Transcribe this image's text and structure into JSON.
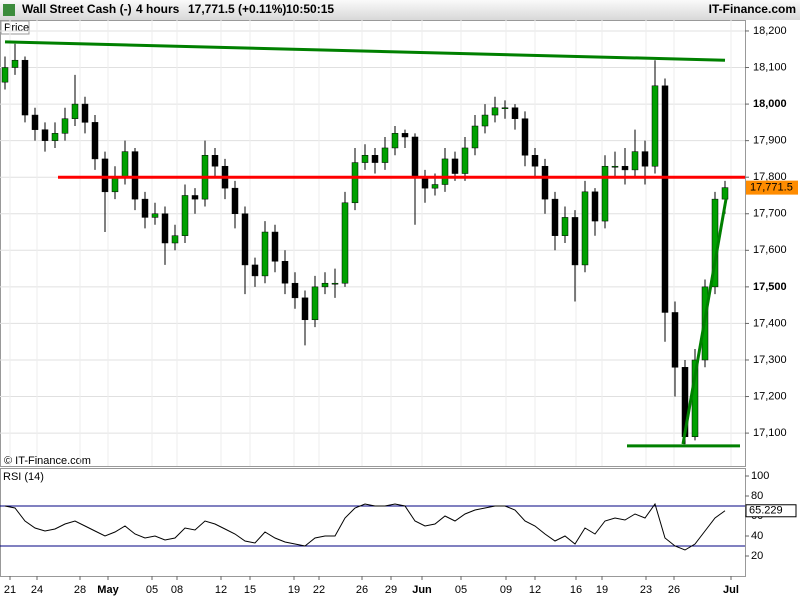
{
  "header": {
    "instrument": "Wall Street Cash (-)",
    "period": "4 hours",
    "quote": "17,771.5 (+0.11%)",
    "time": "10:50:15",
    "brand": "IT-Finance.com"
  },
  "chart_data": {
    "type": "candlestick",
    "pane_label": "Price",
    "copyright": "© IT-Finance.com",
    "candles": [
      [
        18060,
        18130,
        18040,
        18100
      ],
      [
        18100,
        18165,
        18080,
        18120
      ],
      [
        18120,
        18130,
        17950,
        17970
      ],
      [
        17970,
        17990,
        17900,
        17930
      ],
      [
        17930,
        17950,
        17870,
        17900
      ],
      [
        17900,
        17950,
        17880,
        17920
      ],
      [
        17920,
        17990,
        17900,
        17960
      ],
      [
        17960,
        18080,
        17940,
        18000
      ],
      [
        18000,
        18020,
        17920,
        17950
      ],
      [
        17950,
        17970,
        17820,
        17850
      ],
      [
        17850,
        17870,
        17650,
        17760
      ],
      [
        17760,
        17830,
        17740,
        17800
      ],
      [
        17800,
        17900,
        17780,
        17870
      ],
      [
        17870,
        17880,
        17710,
        17740
      ],
      [
        17740,
        17760,
        17660,
        17690
      ],
      [
        17690,
        17730,
        17670,
        17700
      ],
      [
        17700,
        17720,
        17560,
        17620
      ],
      [
        17620,
        17670,
        17600,
        17640
      ],
      [
        17640,
        17780,
        17620,
        17750
      ],
      [
        17750,
        17770,
        17700,
        17740
      ],
      [
        17740,
        17900,
        17720,
        17860
      ],
      [
        17860,
        17880,
        17800,
        17830
      ],
      [
        17830,
        17850,
        17740,
        17770
      ],
      [
        17770,
        17790,
        17660,
        17700
      ],
      [
        17700,
        17720,
        17480,
        17560
      ],
      [
        17560,
        17580,
        17500,
        17530
      ],
      [
        17530,
        17680,
        17510,
        17650
      ],
      [
        17650,
        17670,
        17540,
        17570
      ],
      [
        17570,
        17600,
        17480,
        17510
      ],
      [
        17510,
        17540,
        17440,
        17470
      ],
      [
        17470,
        17490,
        17340,
        17410
      ],
      [
        17410,
        17530,
        17390,
        17500
      ],
      [
        17500,
        17540,
        17480,
        17510
      ],
      [
        17510,
        17550,
        17470,
        17510
      ],
      [
        17510,
        17760,
        17500,
        17730
      ],
      [
        17730,
        17880,
        17710,
        17840
      ],
      [
        17840,
        17890,
        17820,
        17860
      ],
      [
        17860,
        17880,
        17810,
        17840
      ],
      [
        17840,
        17910,
        17820,
        17880
      ],
      [
        17880,
        17940,
        17860,
        17920
      ],
      [
        17920,
        17930,
        17880,
        17910
      ],
      [
        17910,
        17920,
        17670,
        17800
      ],
      [
        17800,
        17820,
        17730,
        17770
      ],
      [
        17770,
        17810,
        17750,
        17780
      ],
      [
        17780,
        17880,
        17760,
        17850
      ],
      [
        17850,
        17870,
        17790,
        17810
      ],
      [
        17810,
        17910,
        17790,
        17880
      ],
      [
        17880,
        17970,
        17860,
        17940
      ],
      [
        17940,
        18000,
        17920,
        17970
      ],
      [
        17970,
        18020,
        17950,
        17990
      ],
      [
        17990,
        18010,
        17960,
        17990
      ],
      [
        17990,
        18000,
        17930,
        17960
      ],
      [
        17960,
        17980,
        17830,
        17860
      ],
      [
        17860,
        17880,
        17800,
        17830
      ],
      [
        17830,
        17850,
        17700,
        17740
      ],
      [
        17740,
        17760,
        17600,
        17640
      ],
      [
        17640,
        17720,
        17620,
        17690
      ],
      [
        17690,
        17710,
        17460,
        17560
      ],
      [
        17560,
        17790,
        17540,
        17760
      ],
      [
        17760,
        17770,
        17640,
        17680
      ],
      [
        17680,
        17860,
        17660,
        17830
      ],
      [
        17830,
        17870,
        17800,
        17830
      ],
      [
        17830,
        17880,
        17780,
        17820
      ],
      [
        17820,
        17930,
        17800,
        17870
      ],
      [
        17870,
        17900,
        17780,
        17830
      ],
      [
        17830,
        18120,
        17810,
        18050
      ],
      [
        18050,
        18070,
        17350,
        17430
      ],
      [
        17430,
        17460,
        17200,
        17280
      ],
      [
        17280,
        17300,
        17070,
        17090
      ],
      [
        17090,
        17330,
        17080,
        17300
      ],
      [
        17300,
        17520,
        17280,
        17500
      ],
      [
        17500,
        17760,
        17480,
        17740
      ],
      [
        17740,
        17790,
        17700,
        17771.5
      ]
    ],
    "last_label": "17,771.5",
    "up_color": "#00a000",
    "down_color": "#000000",
    "last_color": "#ff8c00",
    "xlim": [
      -0.5,
      74
    ],
    "xticks": [
      {
        "value": 0.5,
        "label": "21"
      },
      {
        "value": 3.2,
        "label": "24"
      },
      {
        "value": 7.5,
        "label": "28"
      },
      {
        "value": 10.3,
        "label": "May"
      },
      {
        "value": 14.7,
        "label": "05"
      },
      {
        "value": 17.2,
        "label": "08"
      },
      {
        "value": 21.6,
        "label": "12"
      },
      {
        "value": 24.5,
        "label": "15"
      },
      {
        "value": 28.9,
        "label": "19"
      },
      {
        "value": 31.4,
        "label": "22"
      },
      {
        "value": 35.7,
        "label": "26"
      },
      {
        "value": 38.6,
        "label": "29"
      },
      {
        "value": 41.7,
        "label": "Jun"
      },
      {
        "value": 45.6,
        "label": "05"
      },
      {
        "value": 50.1,
        "label": "09"
      },
      {
        "value": 53,
        "label": "12"
      },
      {
        "value": 57.1,
        "label": "16"
      },
      {
        "value": 59.7,
        "label": "19"
      },
      {
        "value": 64.1,
        "label": "23"
      },
      {
        "value": 66.9,
        "label": "26"
      },
      {
        "value": 72.6,
        "label": "Jul"
      }
    ],
    "ylim": [
      17010,
      18230
    ],
    "yticks": [
      {
        "value": 17100,
        "label": "17,100"
      },
      {
        "value": 17200,
        "label": "17,200"
      },
      {
        "value": 17300,
        "label": "17,300"
      },
      {
        "value": 17400,
        "label": "17,400"
      },
      {
        "value": 17500,
        "label": "17,500"
      },
      {
        "value": 17600,
        "label": "17,600"
      },
      {
        "value": 17700,
        "label": "17,700"
      },
      {
        "value": 17800,
        "label": "17,800"
      },
      {
        "value": 17900,
        "label": "17,900"
      },
      {
        "value": 18000,
        "label": "18,000"
      },
      {
        "value": 18100,
        "label": "18,100"
      },
      {
        "value": 18200,
        "label": "18,200"
      }
    ],
    "grid": true,
    "lines": [
      {
        "x1": 0,
        "y1": 18170,
        "x2": 72,
        "y2": 18120,
        "color": "#008000"
      },
      {
        "x1": 5.3,
        "y1": 17800,
        "x2": 74,
        "y2": 17800,
        "color": "#ff0000"
      },
      {
        "x1": 62.2,
        "y1": 17065,
        "x2": 73.5,
        "y2": 17065,
        "color": "#008000"
      },
      {
        "x1": 67.8,
        "y1": 17070,
        "x2": 72.1,
        "y2": 17740,
        "color": "#008000"
      }
    ],
    "rsi": {
      "name": "RSI (14)",
      "color": "#000000",
      "level_color": "#000080",
      "values": [
        70,
        68,
        55,
        48,
        45,
        47,
        52,
        55,
        50,
        45,
        40,
        44,
        50,
        42,
        38,
        40,
        36,
        38,
        48,
        46,
        55,
        52,
        47,
        42,
        35,
        33,
        44,
        38,
        34,
        32,
        30,
        38,
        40,
        40,
        58,
        68,
        72,
        70,
        70,
        72,
        70,
        55,
        50,
        52,
        60,
        55,
        62,
        66,
        68,
        70,
        70,
        66,
        55,
        50,
        42,
        35,
        40,
        32,
        48,
        42,
        55,
        58,
        56,
        62,
        58,
        72,
        38,
        30,
        26,
        32,
        45,
        58,
        65.229
      ],
      "ylim": [
        0,
        106
      ],
      "yticks": [
        20,
        40,
        60,
        80,
        100
      ],
      "levels": [
        30,
        70
      ]
    }
  }
}
